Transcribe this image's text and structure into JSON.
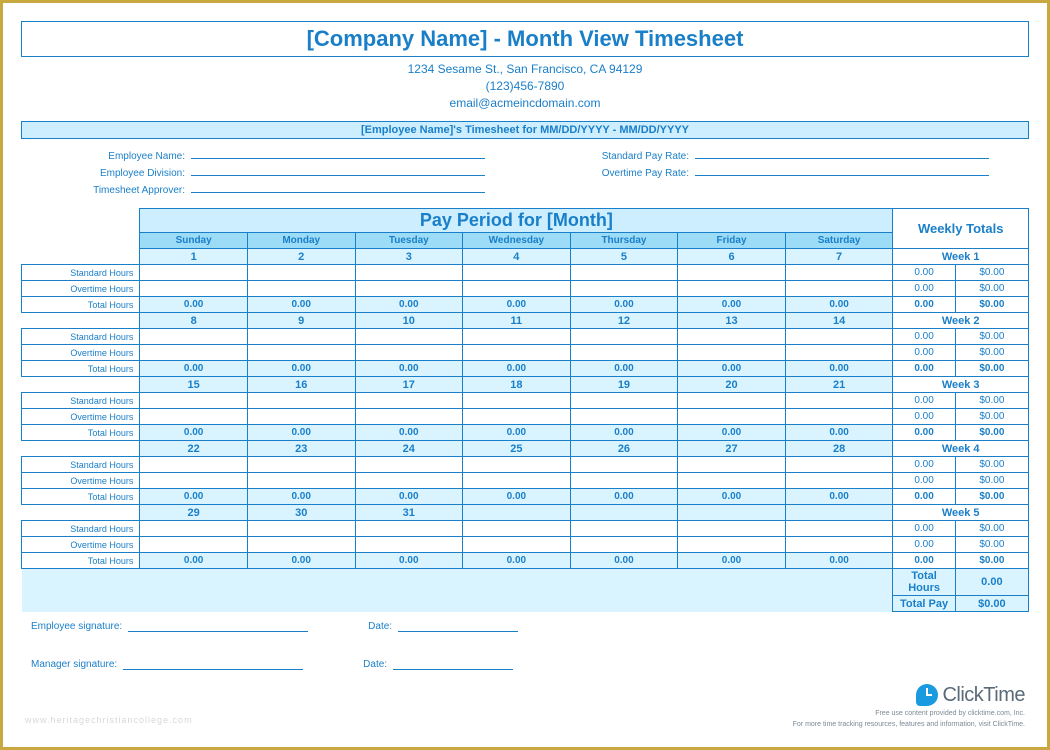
{
  "colors": {
    "border_outer": "#c9a93f",
    "blue": "#1a7fc9",
    "blue_light": "#cceeff",
    "blue_mid": "#9cdcf7",
    "blue_pale": "#d9f4ff",
    "brand_blue": "#1a9be0",
    "grey_text": "#5a6a78"
  },
  "header": {
    "title": "[Company Name] - Month View Timesheet",
    "address": "1234 Sesame St., San Francisco, CA 94129",
    "phone": "(123)456-7890",
    "email": "email@acmeincdomain.com",
    "timesheet_for": "[Employee Name]'s Timesheet for MM/DD/YYYY - MM/DD/YYYY"
  },
  "meta": {
    "employee_name_label": "Employee Name:",
    "employee_division_label": "Employee Division:",
    "timesheet_approver_label": "Timesheet Approver:",
    "standard_pay_label": "Standard Pay Rate:",
    "overtime_pay_label": "Overtime Pay Rate:"
  },
  "table": {
    "pay_period_title": "Pay Period for [Month]",
    "weekly_totals_title": "Weekly Totals",
    "day_headers": [
      "Sunday",
      "Monday",
      "Tuesday",
      "Wednesday",
      "Thursday",
      "Friday",
      "Saturday"
    ],
    "row_labels": {
      "standard": "Standard Hours",
      "overtime": "Overtime Hours",
      "total": "Total Hours"
    },
    "weeks": [
      {
        "label": "Week 1",
        "days": [
          "1",
          "2",
          "3",
          "4",
          "5",
          "6",
          "7"
        ],
        "standard": [
          "",
          "",
          "",
          "",
          "",
          "",
          ""
        ],
        "overtime": [
          "",
          "",
          "",
          "",
          "",
          "",
          ""
        ],
        "total": [
          "0.00",
          "0.00",
          "0.00",
          "0.00",
          "0.00",
          "0.00",
          "0.00"
        ],
        "wt_std_h": "0.00",
        "wt_std_p": "$0.00",
        "wt_ot_h": "0.00",
        "wt_ot_p": "$0.00",
        "wt_tot_h": "0.00",
        "wt_tot_p": "$0.00"
      },
      {
        "label": "Week 2",
        "days": [
          "8",
          "9",
          "10",
          "11",
          "12",
          "13",
          "14"
        ],
        "standard": [
          "",
          "",
          "",
          "",
          "",
          "",
          ""
        ],
        "overtime": [
          "",
          "",
          "",
          "",
          "",
          "",
          ""
        ],
        "total": [
          "0.00",
          "0.00",
          "0.00",
          "0.00",
          "0.00",
          "0.00",
          "0.00"
        ],
        "wt_std_h": "0.00",
        "wt_std_p": "$0.00",
        "wt_ot_h": "0.00",
        "wt_ot_p": "$0.00",
        "wt_tot_h": "0.00",
        "wt_tot_p": "$0.00"
      },
      {
        "label": "Week 3",
        "days": [
          "15",
          "16",
          "17",
          "18",
          "19",
          "20",
          "21"
        ],
        "standard": [
          "",
          "",
          "",
          "",
          "",
          "",
          ""
        ],
        "overtime": [
          "",
          "",
          "",
          "",
          "",
          "",
          ""
        ],
        "total": [
          "0.00",
          "0.00",
          "0.00",
          "0.00",
          "0.00",
          "0.00",
          "0.00"
        ],
        "wt_std_h": "0.00",
        "wt_std_p": "$0.00",
        "wt_ot_h": "0.00",
        "wt_ot_p": "$0.00",
        "wt_tot_h": "0.00",
        "wt_tot_p": "$0.00"
      },
      {
        "label": "Week 4",
        "days": [
          "22",
          "23",
          "24",
          "25",
          "26",
          "27",
          "28"
        ],
        "standard": [
          "",
          "",
          "",
          "",
          "",
          "",
          ""
        ],
        "overtime": [
          "",
          "",
          "",
          "",
          "",
          "",
          ""
        ],
        "total": [
          "0.00",
          "0.00",
          "0.00",
          "0.00",
          "0.00",
          "0.00",
          "0.00"
        ],
        "wt_std_h": "0.00",
        "wt_std_p": "$0.00",
        "wt_ot_h": "0.00",
        "wt_ot_p": "$0.00",
        "wt_tot_h": "0.00",
        "wt_tot_p": "$0.00"
      },
      {
        "label": "Week 5",
        "days": [
          "29",
          "30",
          "31",
          "",
          "",
          "",
          ""
        ],
        "standard": [
          "",
          "",
          "",
          "",
          "",
          "",
          ""
        ],
        "overtime": [
          "",
          "",
          "",
          "",
          "",
          "",
          ""
        ],
        "total": [
          "0.00",
          "0.00",
          "0.00",
          "0.00",
          "0.00",
          "0.00",
          "0.00"
        ],
        "wt_std_h": "0.00",
        "wt_std_p": "$0.00",
        "wt_ot_h": "0.00",
        "wt_ot_p": "$0.00",
        "wt_tot_h": "0.00",
        "wt_tot_p": "$0.00"
      }
    ],
    "grand": {
      "total_hours_label": "Total Hours",
      "total_hours_value": "0.00",
      "total_pay_label": "Total Pay",
      "total_pay_value": "$0.00"
    }
  },
  "signatures": {
    "employee_label": "Employee signature:",
    "manager_label": "Manager signature:",
    "date_label": "Date:"
  },
  "footer": {
    "brand": "ClickTime",
    "line1": "Free use content provided by clicktime.com, Inc.",
    "line2": "For more time tracking resources, features and information, visit ClickTime."
  },
  "watermark": "www.heritagechristiancollege.com"
}
